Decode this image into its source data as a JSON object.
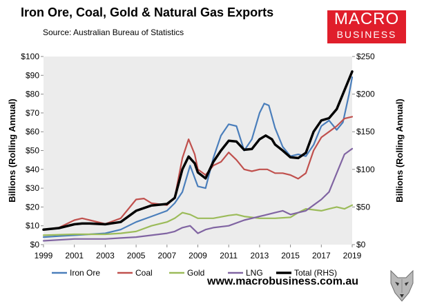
{
  "title": "Iron Ore, Coal, Gold & Natural Gas Exports",
  "subtitle": "Source: Australian Bureau of Statistics",
  "logo": {
    "line1": "MACRO",
    "line2": "BUSINESS",
    "bg_color": "#e01e2b"
  },
  "footer": "www.macrobusiness.com.au",
  "chart_data": {
    "type": "line",
    "title": "Iron Ore, Coal, Gold & Natural Gas Exports",
    "ylabel": "Billions (Rolling Annual)",
    "y2label": "Billions (Rolling Annual)",
    "ylim": [
      0,
      100
    ],
    "y2lim": [
      0,
      250
    ],
    "xlim": [
      1999,
      2019
    ],
    "yticks": [
      "$0",
      "$10",
      "$20",
      "$30",
      "$40",
      "$50",
      "$60",
      "$70",
      "$80",
      "$90",
      "$100"
    ],
    "y2ticks": [
      "$0",
      "$50",
      "$100",
      "$150",
      "$200",
      "$250"
    ],
    "xticks": [
      "1999",
      "2001",
      "2003",
      "2005",
      "2007",
      "2009",
      "2011",
      "2013",
      "2015",
      "2017",
      "2019"
    ],
    "legend_position": "bottom",
    "plot_background": "#ececec",
    "series": [
      {
        "name": "Iron Ore",
        "color": "#4a7ebb",
        "axis": "left",
        "points": [
          [
            1999,
            4
          ],
          [
            2000,
            4.5
          ],
          [
            2001,
            5
          ],
          [
            2002,
            5.5
          ],
          [
            2003,
            6
          ],
          [
            2004,
            8
          ],
          [
            2005,
            12
          ],
          [
            2006,
            15
          ],
          [
            2007,
            18
          ],
          [
            2007.5,
            22
          ],
          [
            2008,
            28
          ],
          [
            2008.5,
            42
          ],
          [
            2009,
            31
          ],
          [
            2009.5,
            30
          ],
          [
            2010,
            46
          ],
          [
            2010.5,
            58
          ],
          [
            2011,
            64
          ],
          [
            2011.5,
            63
          ],
          [
            2012,
            50
          ],
          [
            2012.5,
            56
          ],
          [
            2013,
            70
          ],
          [
            2013.3,
            75
          ],
          [
            2013.6,
            74
          ],
          [
            2014,
            62
          ],
          [
            2014.5,
            52
          ],
          [
            2015,
            47
          ],
          [
            2015.5,
            48
          ],
          [
            2016,
            47
          ],
          [
            2016.5,
            53
          ],
          [
            2017,
            63
          ],
          [
            2017.5,
            66
          ],
          [
            2018,
            61
          ],
          [
            2018.4,
            65
          ],
          [
            2018.8,
            80
          ],
          [
            2019,
            89
          ]
        ]
      },
      {
        "name": "Coal",
        "color": "#c0504d",
        "axis": "left",
        "points": [
          [
            1999,
            8
          ],
          [
            2000,
            9
          ],
          [
            2001,
            13
          ],
          [
            2001.5,
            14
          ],
          [
            2002,
            13
          ],
          [
            2003,
            11
          ],
          [
            2004,
            14
          ],
          [
            2005,
            24
          ],
          [
            2005.5,
            24.5
          ],
          [
            2006,
            22
          ],
          [
            2007,
            21
          ],
          [
            2007.5,
            25
          ],
          [
            2008,
            46
          ],
          [
            2008.4,
            56
          ],
          [
            2008.8,
            48
          ],
          [
            2009,
            40
          ],
          [
            2009.5,
            37
          ],
          [
            2010,
            42
          ],
          [
            2010.5,
            44
          ],
          [
            2011,
            49
          ],
          [
            2011.5,
            45
          ],
          [
            2012,
            40
          ],
          [
            2012.5,
            39
          ],
          [
            2013,
            40
          ],
          [
            2013.5,
            40
          ],
          [
            2014,
            38
          ],
          [
            2014.5,
            38
          ],
          [
            2015,
            37
          ],
          [
            2015.5,
            35
          ],
          [
            2016,
            38
          ],
          [
            2016.5,
            50
          ],
          [
            2017,
            57
          ],
          [
            2017.5,
            60
          ],
          [
            2018,
            63
          ],
          [
            2018.5,
            67
          ],
          [
            2019,
            68
          ]
        ]
      },
      {
        "name": "Gold",
        "color": "#9bbb59",
        "axis": "left",
        "points": [
          [
            1999,
            5
          ],
          [
            2001,
            5.5
          ],
          [
            2003,
            5.5
          ],
          [
            2004,
            6
          ],
          [
            2005,
            7
          ],
          [
            2006,
            10
          ],
          [
            2007,
            12
          ],
          [
            2007.5,
            14
          ],
          [
            2008,
            17
          ],
          [
            2008.5,
            16
          ],
          [
            2009,
            14
          ],
          [
            2010,
            14
          ],
          [
            2011,
            15.5
          ],
          [
            2011.5,
            16
          ],
          [
            2012,
            15
          ],
          [
            2013,
            14
          ],
          [
            2014,
            14
          ],
          [
            2015,
            14.5
          ],
          [
            2015.5,
            17
          ],
          [
            2016,
            19
          ],
          [
            2017,
            18
          ],
          [
            2017.5,
            19
          ],
          [
            2018,
            20
          ],
          [
            2018.5,
            19
          ],
          [
            2019,
            21
          ]
        ]
      },
      {
        "name": "LNG",
        "color": "#8064a2",
        "axis": "left",
        "points": [
          [
            1999,
            2
          ],
          [
            2001,
            3
          ],
          [
            2003,
            3
          ],
          [
            2004,
            3.5
          ],
          [
            2005,
            4
          ],
          [
            2006,
            5
          ],
          [
            2007,
            6
          ],
          [
            2007.5,
            7
          ],
          [
            2008,
            9
          ],
          [
            2008.5,
            10
          ],
          [
            2009,
            6
          ],
          [
            2009.5,
            8
          ],
          [
            2010,
            9
          ],
          [
            2011,
            10
          ],
          [
            2012,
            13
          ],
          [
            2013,
            15
          ],
          [
            2014,
            17
          ],
          [
            2014.5,
            18
          ],
          [
            2015,
            16
          ],
          [
            2015.5,
            17
          ],
          [
            2016,
            18
          ],
          [
            2016.5,
            21
          ],
          [
            2017,
            24
          ],
          [
            2017.5,
            28
          ],
          [
            2018,
            38
          ],
          [
            2018.5,
            48
          ],
          [
            2019,
            51
          ]
        ]
      },
      {
        "name": "Total (RHS)",
        "color": "#000000",
        "axis": "right",
        "points": [
          [
            1999,
            20
          ],
          [
            2000,
            22
          ],
          [
            2001,
            27
          ],
          [
            2001.5,
            28
          ],
          [
            2002,
            28
          ],
          [
            2003,
            27
          ],
          [
            2004,
            30
          ],
          [
            2005,
            45
          ],
          [
            2006,
            52
          ],
          [
            2007,
            54
          ],
          [
            2007.5,
            62
          ],
          [
            2008,
            100
          ],
          [
            2008.4,
            117
          ],
          [
            2008.8,
            108
          ],
          [
            2009,
            96
          ],
          [
            2009.5,
            88
          ],
          [
            2010,
            110
          ],
          [
            2010.5,
            125
          ],
          [
            2011,
            138
          ],
          [
            2011.5,
            137
          ],
          [
            2012,
            126
          ],
          [
            2012.5,
            127
          ],
          [
            2013,
            140
          ],
          [
            2013.4,
            145
          ],
          [
            2013.8,
            140
          ],
          [
            2014,
            133
          ],
          [
            2014.5,
            125
          ],
          [
            2015,
            116
          ],
          [
            2015.5,
            115
          ],
          [
            2016,
            122
          ],
          [
            2016.5,
            150
          ],
          [
            2017,
            165
          ],
          [
            2017.5,
            168
          ],
          [
            2018,
            180
          ],
          [
            2018.5,
            205
          ],
          [
            2019,
            230
          ]
        ]
      }
    ]
  }
}
